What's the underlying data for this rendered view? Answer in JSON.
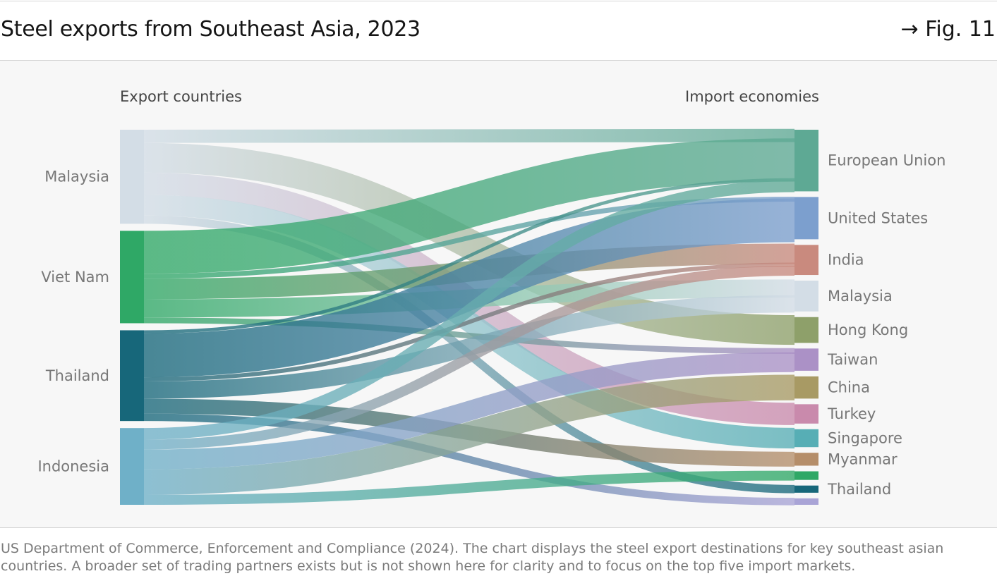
{
  "header": {
    "title": "Steel exports from Southeast Asia, 2023",
    "fig_ref": "→ Fig. 11"
  },
  "footer": {
    "source": "US Department of Commerce, Enforcement and Compliance (2024). The chart displays the steel export destinations for key southeast asian countries. A broader set of trading partners exists but is not shown here for clarity and to focus on the top five import markets."
  },
  "chart_data": {
    "type": "sankey",
    "left_heading": "Export countries",
    "right_heading": "Import economies",
    "sources": [
      {
        "name": "Malaysia",
        "color": "#d3dde6"
      },
      {
        "name": "Viet Nam",
        "color": "#2fa866"
      },
      {
        "name": "Thailand",
        "color": "#17677a"
      },
      {
        "name": "Indonesia",
        "color": "#6fb0c8"
      }
    ],
    "targets": [
      {
        "name": "European Union",
        "color": "#5ea994"
      },
      {
        "name": "United States",
        "color": "#7c9fce"
      },
      {
        "name": "India",
        "color": "#c98a7e"
      },
      {
        "name": "Malaysia",
        "color": "#d3dde6"
      },
      {
        "name": "Hong Kong",
        "color": "#8ea06a"
      },
      {
        "name": "Taiwan",
        "color": "#ab91c6"
      },
      {
        "name": "China",
        "color": "#a89a64"
      },
      {
        "name": "Turkey",
        "color": "#c98aac"
      },
      {
        "name": "Singapore",
        "color": "#57aeb5"
      },
      {
        "name": "Myanmar",
        "color": "#b58e6a"
      },
      {
        "name": "",
        "color": "#2fa866"
      },
      {
        "name": "Thailand",
        "color": "#17677a"
      },
      {
        "name": "",
        "color": "#a9a4d6"
      }
    ],
    "flows": [
      {
        "source": "Malaysia",
        "target": "European Union",
        "value": 16
      },
      {
        "source": "Malaysia",
        "target": "Hong Kong",
        "value": 36
      },
      {
        "source": "Malaysia",
        "target": "Turkey",
        "value": 27
      },
      {
        "source": "Malaysia",
        "target": "Singapore",
        "value": 25
      },
      {
        "source": "Malaysia",
        "target": "Thailand",
        "value": 10
      },
      {
        "source": "Viet Nam",
        "target": "European Union",
        "value": 52
      },
      {
        "source": "Viet Nam",
        "target": "United States",
        "value": 6
      },
      {
        "source": "Viet Nam",
        "target": "India",
        "value": 25
      },
      {
        "source": "Viet Nam",
        "target": "Malaysia",
        "value": 22
      },
      {
        "source": "Viet Nam",
        "target": "Taiwan",
        "value": 7
      },
      {
        "source": "Thailand",
        "target": "European Union",
        "value": 4
      },
      {
        "source": "Thailand",
        "target": "United States",
        "value": 53
      },
      {
        "source": "Thailand",
        "target": "India",
        "value": 5
      },
      {
        "source": "Thailand",
        "target": "Malaysia",
        "value": 21
      },
      {
        "source": "Thailand",
        "target": "Myanmar",
        "value": 18
      },
      {
        "source": "Thailand",
        "target": "",
        "value": 9
      },
      {
        "source": "Indonesia",
        "target": "European Union",
        "value": 14
      },
      {
        "source": "Indonesia",
        "target": "India",
        "value": 12
      },
      {
        "source": "Indonesia",
        "target": "Taiwan",
        "value": 24
      },
      {
        "source": "Indonesia",
        "target": "China",
        "value": 31
      },
      {
        "source": "Indonesia",
        "target": "",
        "value": 12
      }
    ]
  }
}
